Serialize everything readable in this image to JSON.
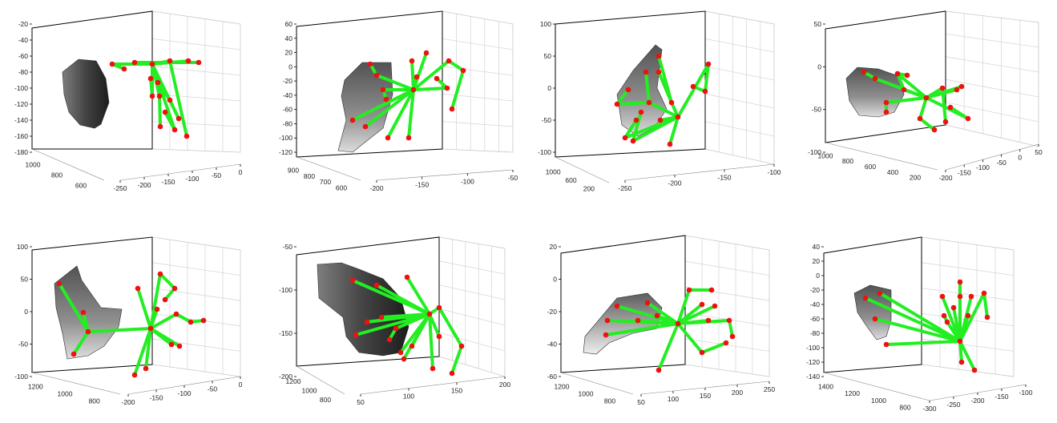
{
  "figure": {
    "colors": {
      "bone": "#22ee22",
      "joint": "#ee1111",
      "axis": "#000000",
      "grid": "#d8d8d8"
    }
  },
  "chart_data": [
    {
      "type": "scatter",
      "kind": "3d-hand-pose",
      "y_ticks": [
        "-20",
        "-40",
        "-60",
        "-80",
        "-100",
        "-120",
        "-140",
        "-160",
        "-180"
      ],
      "depth_ticks": [
        "1000",
        "800",
        "600"
      ],
      "x_ticks": [
        "-250",
        "-200",
        "-150",
        "-100",
        "-50",
        "0"
      ]
    },
    {
      "type": "scatter",
      "kind": "3d-hand-pose",
      "y_ticks": [
        "60",
        "40",
        "20",
        "0",
        "-20",
        "-40",
        "-60",
        "-80",
        "-100",
        "-120"
      ],
      "depth_ticks": [
        "900",
        "800",
        "700",
        "600"
      ],
      "x_ticks": [
        "-200",
        "-150",
        "-100",
        "-50"
      ]
    },
    {
      "type": "scatter",
      "kind": "3d-hand-pose",
      "y_ticks": [
        "100",
        "50",
        "0",
        "-50",
        "-100"
      ],
      "depth_ticks": [
        "1000",
        "600",
        "200"
      ],
      "x_ticks": [
        "-250",
        "-200",
        "-150",
        "-100"
      ]
    },
    {
      "type": "scatter",
      "kind": "3d-hand-pose",
      "y_ticks": [
        "50",
        "0",
        "-50",
        "-100"
      ],
      "depth_ticks": [
        "1000",
        "800",
        "600",
        "400",
        "200"
      ],
      "x_ticks": [
        "-200",
        "-150",
        "-100",
        "-50",
        "0",
        "50"
      ]
    },
    {
      "type": "scatter",
      "kind": "3d-hand-pose",
      "y_ticks": [
        "100",
        "50",
        "0",
        "-50",
        "-100"
      ],
      "depth_ticks": [
        "1200",
        "1000",
        "800"
      ],
      "x_ticks": [
        "-200",
        "-150",
        "-100",
        "-50",
        "0"
      ]
    },
    {
      "type": "scatter",
      "kind": "3d-hand-pose",
      "y_ticks": [
        "-50",
        "-100",
        "-150",
        "-200"
      ],
      "depth_ticks": [
        "1200",
        "1000",
        "800"
      ],
      "x_ticks": [
        "50",
        "100",
        "150",
        "200"
      ]
    },
    {
      "type": "scatter",
      "kind": "3d-hand-pose",
      "y_ticks": [
        "20",
        "0",
        "-20",
        "-40",
        "-60"
      ],
      "depth_ticks": [
        "1200",
        "1000",
        "800"
      ],
      "x_ticks": [
        "50",
        "100",
        "150",
        "200",
        "250"
      ]
    },
    {
      "type": "scatter",
      "kind": "3d-hand-pose",
      "y_ticks": [
        "40",
        "20",
        "0",
        "-20",
        "-40",
        "-60",
        "-80",
        "-100",
        "-120",
        "-140"
      ],
      "depth_ticks": [
        "1400",
        "1200",
        "1000",
        "800"
      ],
      "x_ticks": [
        "-300",
        "-250",
        "-200",
        "-150",
        "-100"
      ]
    }
  ]
}
